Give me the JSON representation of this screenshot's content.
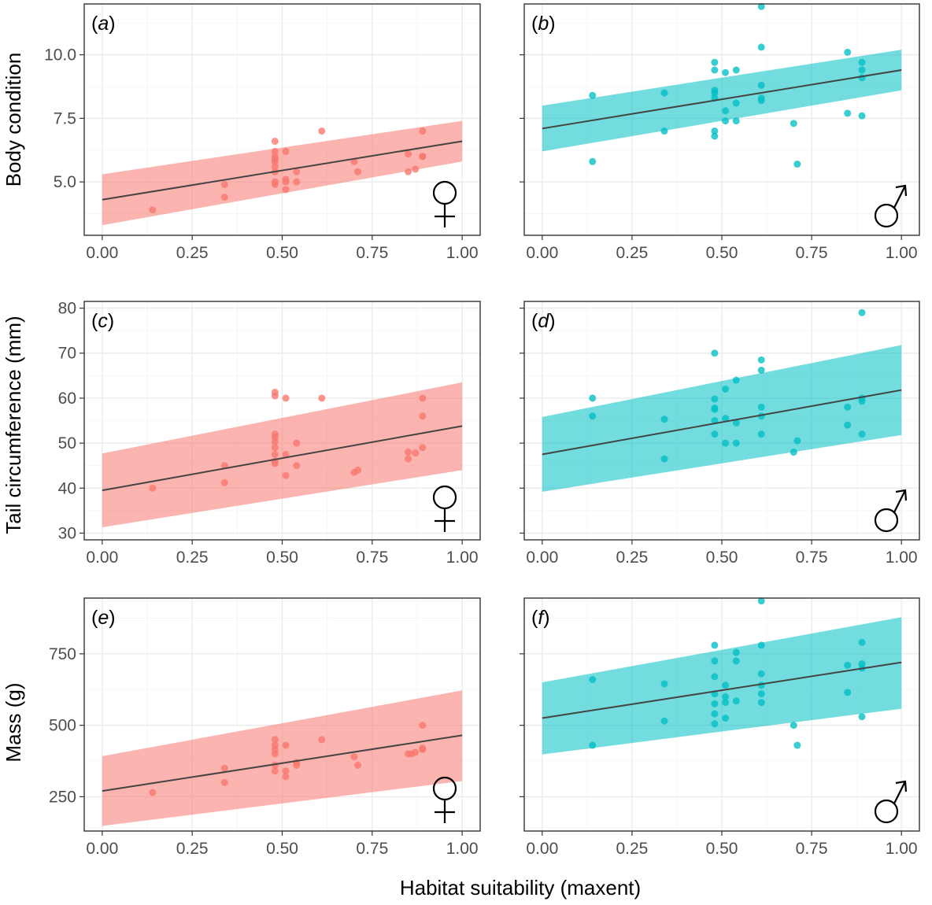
{
  "x_axis_title": "Habitat suitability (maxent)",
  "colors": {
    "female": "#F8766D",
    "male": "#00BFC4",
    "line": "#444444"
  },
  "icons": {
    "female": "female-symbol-icon",
    "male": "male-symbol-icon"
  },
  "chart_data": [
    {
      "type": "scatter",
      "panel_label": "(a)",
      "sex": "female",
      "ylabel": "Body condition",
      "xlim": [
        -0.05,
        1.05
      ],
      "ylim": [
        2.9,
        12.0
      ],
      "xticks": [
        0,
        0.25,
        0.5,
        0.75,
        1
      ],
      "xtick_labels": [
        "0.00",
        "0.25",
        "0.50",
        "0.75",
        "1.00"
      ],
      "yticks": [
        5,
        7.5,
        10
      ],
      "ytick_labels": [
        "5.0",
        "7.5",
        "10.0"
      ],
      "fit": {
        "x": [
          0,
          1
        ],
        "y": [
          4.3,
          6.6
        ]
      },
      "ci": {
        "lower": [
          3.3,
          5.8
        ],
        "upper": [
          5.3,
          7.4
        ]
      },
      "points": {
        "x": [
          0.14,
          0.34,
          0.34,
          0.48,
          0.48,
          0.48,
          0.48,
          0.48,
          0.48,
          0.48,
          0.48,
          0.48,
          0.51,
          0.51,
          0.51,
          0.51,
          0.54,
          0.54,
          0.61,
          0.7,
          0.71,
          0.85,
          0.85,
          0.87,
          0.89,
          0.89,
          0.89
        ],
        "y": [
          3.9,
          4.4,
          4.9,
          6.6,
          6.2,
          6.0,
          5.9,
          5.8,
          5.6,
          5.4,
          5.0,
          4.9,
          6.2,
          5.1,
          5.0,
          4.7,
          5.4,
          5.0,
          7.0,
          5.8,
          5.4,
          6.1,
          5.4,
          5.5,
          7.0,
          6.0,
          6.0
        ]
      }
    },
    {
      "type": "scatter",
      "panel_label": "(b)",
      "sex": "male",
      "ylabel": "",
      "xlim": [
        -0.05,
        1.05
      ],
      "ylim": [
        2.9,
        12.0
      ],
      "xticks": [
        0,
        0.25,
        0.5,
        0.75,
        1
      ],
      "xtick_labels": [
        "0.00",
        "0.25",
        "0.50",
        "0.75",
        "1.00"
      ],
      "yticks": [
        5,
        7.5,
        10
      ],
      "ytick_labels": [],
      "fit": {
        "x": [
          0,
          1
        ],
        "y": [
          7.1,
          9.4
        ]
      },
      "ci": {
        "lower": [
          6.2,
          8.6
        ],
        "upper": [
          8.0,
          10.2
        ]
      },
      "points": {
        "x": [
          0.14,
          0.14,
          0.34,
          0.34,
          0.48,
          0.48,
          0.48,
          0.48,
          0.48,
          0.48,
          0.48,
          0.51,
          0.51,
          0.51,
          0.54,
          0.54,
          0.54,
          0.61,
          0.61,
          0.61,
          0.61,
          0.61,
          0.7,
          0.71,
          0.85,
          0.85,
          0.89,
          0.89,
          0.89,
          0.89
        ],
        "y": [
          8.4,
          5.8,
          8.5,
          7.0,
          9.7,
          9.4,
          8.6,
          8.3,
          7.0,
          6.8,
          8.5,
          9.3,
          7.8,
          7.4,
          9.4,
          8.1,
          7.4,
          11.9,
          10.3,
          8.8,
          8.3,
          8.2,
          7.3,
          5.7,
          10.1,
          7.7,
          9.7,
          9.4,
          9.1,
          7.6
        ]
      }
    },
    {
      "type": "scatter",
      "panel_label": "(c)",
      "sex": "female",
      "ylabel": "Tail circumference (mm)",
      "xlim": [
        -0.05,
        1.05
      ],
      "ylim": [
        28.5,
        81.5
      ],
      "xticks": [
        0,
        0.25,
        0.5,
        0.75,
        1
      ],
      "xtick_labels": [
        "0.00",
        "0.25",
        "0.50",
        "0.75",
        "1.00"
      ],
      "yticks": [
        30,
        40,
        50,
        60,
        70,
        80
      ],
      "ytick_labels": [
        "30",
        "40",
        "50",
        "60",
        "70",
        "80"
      ],
      "fit": {
        "x": [
          0,
          1
        ],
        "y": [
          39.5,
          53.8
        ]
      },
      "ci": {
        "lower": [
          31.3,
          44.0
        ],
        "upper": [
          47.7,
          63.5
        ]
      },
      "points": {
        "x": [
          0.14,
          0.34,
          0.34,
          0.48,
          0.48,
          0.48,
          0.48,
          0.48,
          0.48,
          0.48,
          0.48,
          0.48,
          0.51,
          0.51,
          0.51,
          0.54,
          0.54,
          0.61,
          0.7,
          0.71,
          0.85,
          0.85,
          0.87,
          0.89,
          0.89,
          0.89
        ],
        "y": [
          40.0,
          45.0,
          41.2,
          61.3,
          60.5,
          52.0,
          51.3,
          50.3,
          49.0,
          47.5,
          45.5,
          46.0,
          60.0,
          47.5,
          42.8,
          50.0,
          45.0,
          60.0,
          43.5,
          44.0,
          48.0,
          46.5,
          47.8,
          60.0,
          56.0,
          49.0
        ]
      }
    },
    {
      "type": "scatter",
      "panel_label": "(d)",
      "sex": "male",
      "ylabel": "",
      "xlim": [
        -0.05,
        1.05
      ],
      "ylim": [
        28.5,
        81.5
      ],
      "xticks": [
        0,
        0.25,
        0.5,
        0.75,
        1
      ],
      "xtick_labels": [
        "0.00",
        "0.25",
        "0.50",
        "0.75",
        "1.00"
      ],
      "yticks": [
        30,
        40,
        50,
        60,
        70,
        80
      ],
      "ytick_labels": [],
      "fit": {
        "x": [
          0,
          1
        ],
        "y": [
          47.5,
          61.8
        ]
      },
      "ci": {
        "lower": [
          39.2,
          51.8
        ],
        "upper": [
          55.8,
          71.8
        ]
      },
      "points": {
        "x": [
          0.14,
          0.14,
          0.34,
          0.34,
          0.48,
          0.48,
          0.48,
          0.48,
          0.48,
          0.48,
          0.51,
          0.51,
          0.51,
          0.54,
          0.54,
          0.54,
          0.61,
          0.61,
          0.61,
          0.61,
          0.61,
          0.7,
          0.71,
          0.85,
          0.85,
          0.89,
          0.89,
          0.89,
          0.89
        ],
        "y": [
          60.0,
          56.0,
          55.3,
          46.5,
          70.0,
          59.8,
          57.8,
          57.5,
          55.0,
          52.0,
          62.0,
          55.5,
          50.0,
          64.0,
          54.5,
          50.0,
          68.5,
          66.2,
          58.0,
          56.0,
          52.0,
          48.0,
          50.5,
          58.0,
          54.0,
          79.0,
          60.0,
          59.3,
          52.0
        ]
      }
    },
    {
      "type": "scatter",
      "panel_label": "(e)",
      "sex": "female",
      "ylabel": "Mass (g)",
      "xlim": [
        -0.05,
        1.05
      ],
      "ylim": [
        130,
        945
      ],
      "xticks": [
        0,
        0.25,
        0.5,
        0.75,
        1
      ],
      "xtick_labels": [
        "0.00",
        "0.25",
        "0.50",
        "0.75",
        "1.00"
      ],
      "yticks": [
        250,
        500,
        750
      ],
      "ytick_labels": [
        "250",
        "500",
        "750"
      ],
      "fit": {
        "x": [
          0,
          1
        ],
        "y": [
          270,
          465
        ]
      },
      "ci": {
        "lower": [
          148,
          305
        ],
        "upper": [
          392,
          622
        ]
      },
      "points": {
        "x": [
          0.14,
          0.34,
          0.34,
          0.48,
          0.48,
          0.48,
          0.48,
          0.48,
          0.48,
          0.51,
          0.51,
          0.51,
          0.54,
          0.54,
          0.61,
          0.7,
          0.71,
          0.85,
          0.86,
          0.87,
          0.89,
          0.89,
          0.89
        ],
        "y": [
          265,
          350,
          300,
          450,
          430,
          415,
          400,
          360,
          340,
          430,
          340,
          320,
          370,
          360,
          450,
          390,
          360,
          400,
          400,
          405,
          500,
          420,
          415
        ]
      }
    },
    {
      "type": "scatter",
      "panel_label": "(f)",
      "sex": "male",
      "ylabel": "",
      "xlim": [
        -0.05,
        1.05
      ],
      "ylim": [
        130,
        945
      ],
      "xticks": [
        0,
        0.25,
        0.5,
        0.75,
        1
      ],
      "xtick_labels": [
        "0.00",
        "0.25",
        "0.50",
        "0.75",
        "1.00"
      ],
      "yticks": [
        250,
        500,
        750
      ],
      "ytick_labels": [],
      "fit": {
        "x": [
          0,
          1
        ],
        "y": [
          525,
          720
        ]
      },
      "ci": {
        "lower": [
          398,
          558
        ],
        "upper": [
          650,
          878
        ]
      },
      "points": {
        "x": [
          0.14,
          0.14,
          0.34,
          0.34,
          0.48,
          0.48,
          0.48,
          0.48,
          0.48,
          0.48,
          0.48,
          0.51,
          0.51,
          0.51,
          0.51,
          0.54,
          0.54,
          0.54,
          0.61,
          0.61,
          0.61,
          0.61,
          0.61,
          0.61,
          0.7,
          0.71,
          0.85,
          0.85,
          0.89,
          0.89,
          0.89,
          0.89
        ],
        "y": [
          660,
          430,
          645,
          515,
          780,
          725,
          670,
          610,
          575,
          540,
          505,
          640,
          600,
          580,
          525,
          755,
          725,
          585,
          935,
          780,
          680,
          640,
          610,
          580,
          500,
          430,
          710,
          615,
          790,
          715,
          700,
          530
        ]
      }
    }
  ]
}
